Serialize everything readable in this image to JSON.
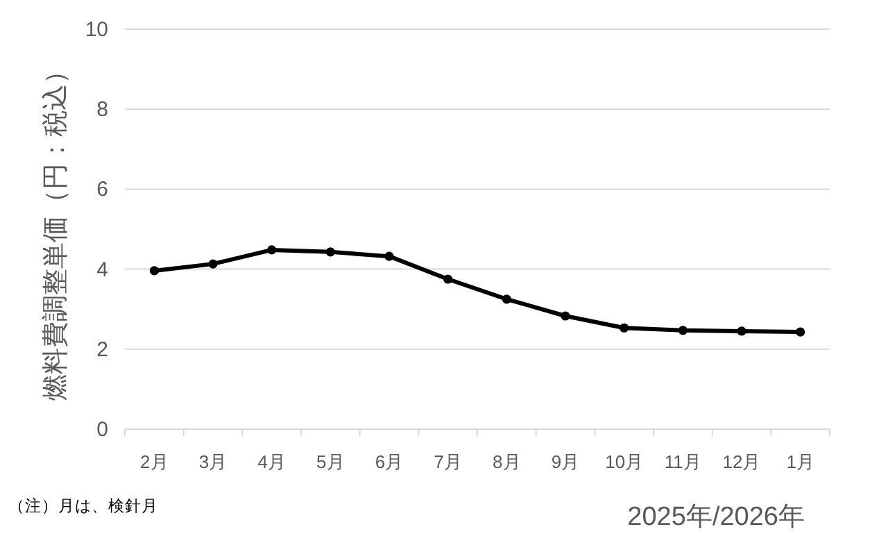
{
  "chart_data": {
    "type": "line",
    "ylabel": "燃料費調整単価（円：税込）",
    "xlabel": "2025年/2026年",
    "annotations": [
      "（注）月は、検針月"
    ],
    "categories": [
      "2月",
      "3月",
      "4月",
      "5月",
      "6月",
      "7月",
      "8月",
      "9月",
      "10月",
      "11月",
      "12月",
      "1月"
    ],
    "series": [
      {
        "color": "#000000",
        "values": [
          3.96,
          4.13,
          4.48,
          4.43,
          4.32,
          3.75,
          3.25,
          2.83,
          2.53,
          2.47,
          2.45,
          2.43
        ]
      }
    ],
    "ylim": [
      0,
      10
    ],
    "yticks": [
      0,
      2,
      4,
      6,
      8,
      10
    ],
    "grid": "y",
    "marker": "circle",
    "line_style": "solid"
  }
}
